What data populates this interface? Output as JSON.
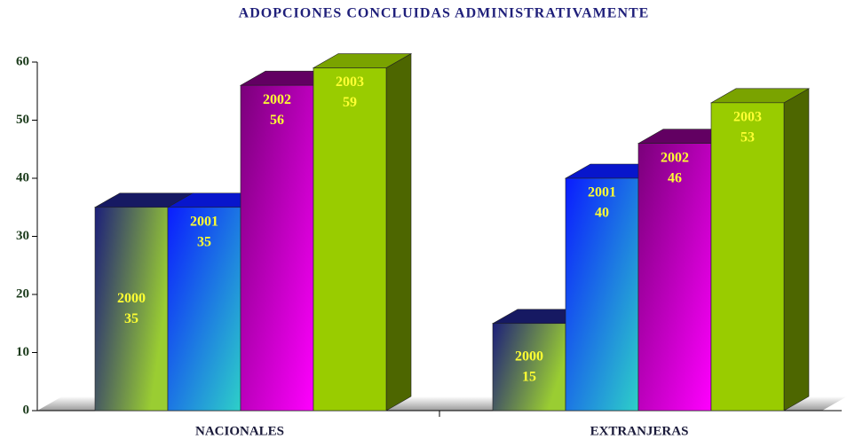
{
  "chart_data": {
    "type": "bar3d",
    "title": "ADOPCIONES CONCLUIDAS ADMINISTRATIVAMENTE",
    "categories": [
      "NACIONALES",
      "EXTRANJERAS"
    ],
    "series": [
      {
        "name": "2000",
        "colors": [
          "#1c1f7a",
          "#9acd32"
        ],
        "values": [
          35,
          15
        ]
      },
      {
        "name": "2001",
        "colors": [
          "#0a1cff",
          "#2ed0c8"
        ],
        "values": [
          35,
          40
        ]
      },
      {
        "name": "2002",
        "colors": [
          "#7a007a",
          "#ff00ff"
        ],
        "values": [
          56,
          46
        ]
      },
      {
        "name": "2003",
        "colors": [
          "#99cc00",
          "#99cc00"
        ],
        "values": [
          59,
          53
        ]
      }
    ],
    "ylim": [
      0,
      60
    ],
    "yticks": [
      0,
      10,
      20,
      30,
      40,
      50,
      60
    ],
    "label_color": "#ffff33"
  }
}
